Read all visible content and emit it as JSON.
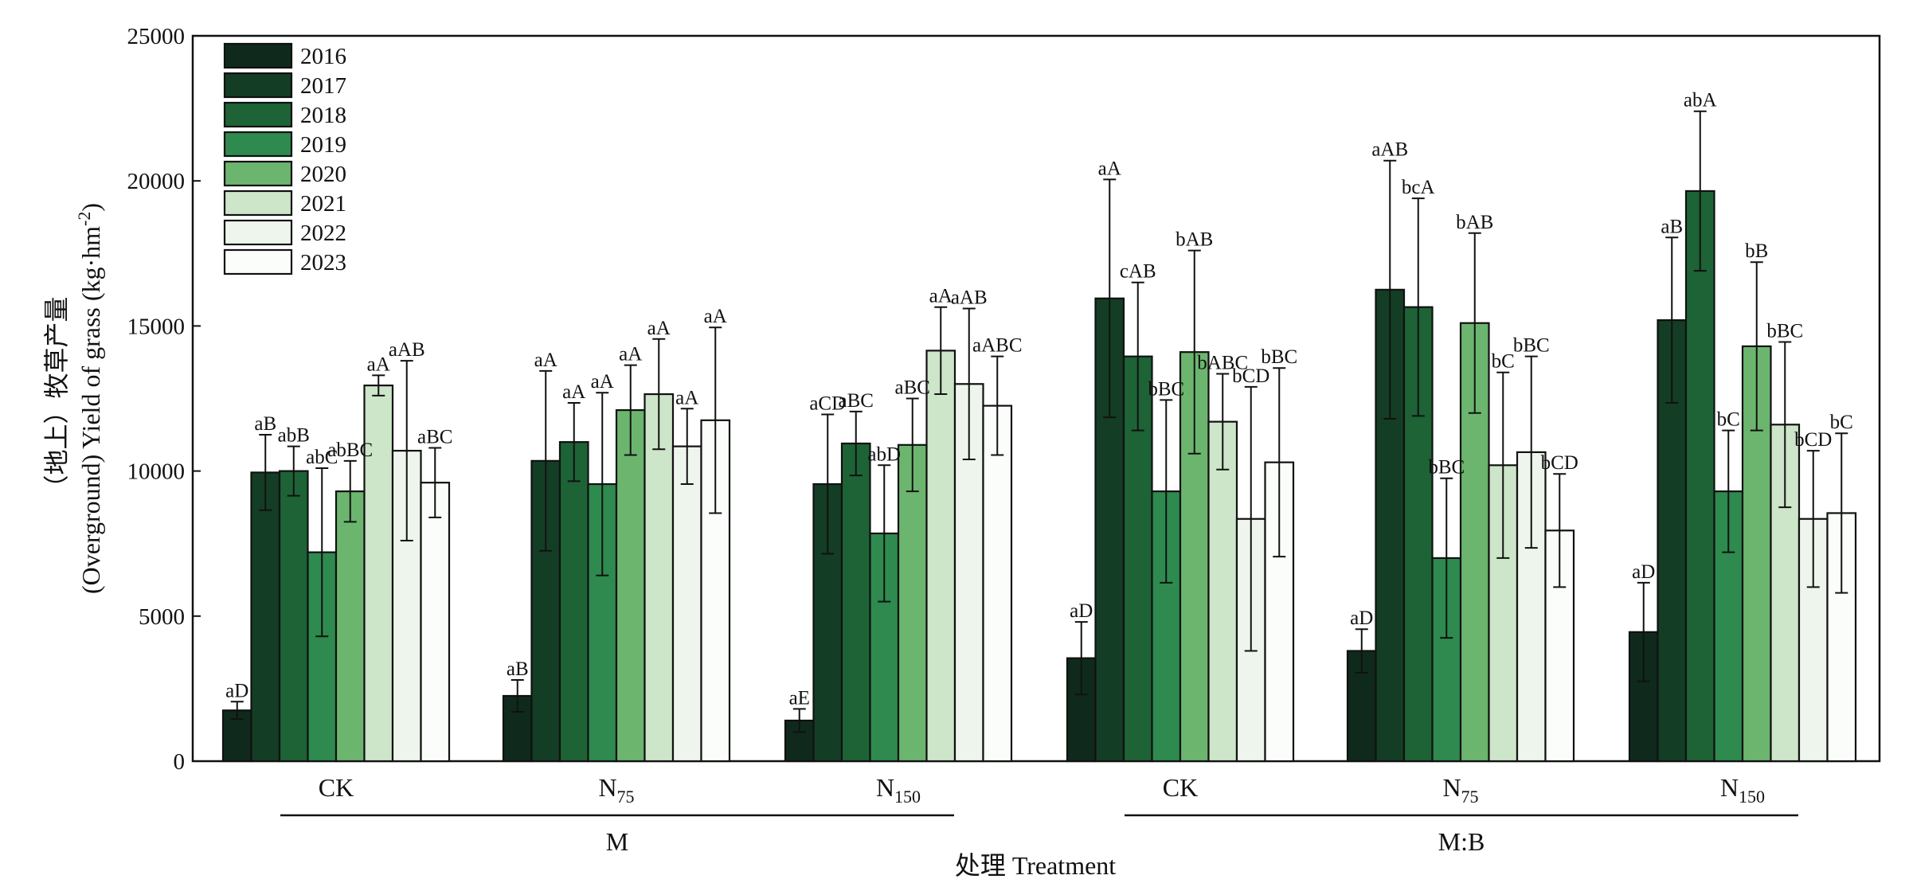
{
  "chart_data": {
    "type": "bar",
    "ylabel_line1": "（地上）牧草产量",
    "ylabel_line2": "(Overground) Yield of grass (kg·hm",
    "ylabel_sup": "-2",
    "ylabel_close": ")",
    "xlabel": "处理 Treatment",
    "ylim": [
      0,
      25000
    ],
    "yticks": [
      "0",
      "5000",
      "10000",
      "15000",
      "20000",
      "25000"
    ],
    "legend_position": "top-left",
    "groups": [
      {
        "name": "M",
        "categories": [
          0,
          1,
          2
        ]
      },
      {
        "name": "M:B",
        "categories": [
          3,
          4,
          5
        ]
      }
    ],
    "categories": [
      {
        "main": "CK",
        "sub": ""
      },
      {
        "main": "N",
        "sub": "75"
      },
      {
        "main": "N",
        "sub": "150"
      },
      {
        "main": "CK",
        "sub": ""
      },
      {
        "main": "N",
        "sub": "75"
      },
      {
        "main": "N",
        "sub": "150"
      }
    ],
    "series": [
      {
        "name": "2016",
        "color": "#0f2a1c",
        "values": [
          1750,
          2250,
          1400,
          3550,
          3800,
          4450
        ],
        "errors": [
          300,
          550,
          400,
          1250,
          750,
          1700
        ],
        "labels": [
          "aD",
          "aB",
          "aE",
          "aD",
          "aD",
          "aD"
        ]
      },
      {
        "name": "2017",
        "color": "#143d25",
        "values": [
          9950,
          10350,
          9550,
          15950,
          16250,
          15200
        ],
        "errors": [
          1300,
          3100,
          2400,
          4100,
          4450,
          2850
        ],
        "labels": [
          "aB",
          "aA",
          "aCD",
          "aA",
          "aAB",
          "aB"
        ]
      },
      {
        "name": "2018",
        "color": "#1d6336",
        "values": [
          10000,
          11000,
          10950,
          13950,
          15650,
          19650
        ],
        "errors": [
          850,
          1350,
          1100,
          2550,
          3750,
          2750
        ],
        "labels": [
          "abB",
          "aA",
          "aBC",
          "cAB",
          "bcA",
          "abA"
        ]
      },
      {
        "name": "2019",
        "color": "#2e8a4e",
        "values": [
          7200,
          9550,
          7850,
          9300,
          7000,
          9300
        ],
        "errors": [
          2900,
          3150,
          2350,
          3150,
          2750,
          2100
        ],
        "labels": [
          "abC",
          "aA",
          "abD",
          "bBC",
          "bBC",
          "bC"
        ]
      },
      {
        "name": "2020",
        "color": "#6cb56f",
        "values": [
          9300,
          12100,
          10900,
          14100,
          15100,
          14300
        ],
        "errors": [
          1050,
          1550,
          1600,
          3500,
          3100,
          2900
        ],
        "labels": [
          "abBC",
          "aA",
          "aBC",
          "bAB",
          "bAB",
          "bB"
        ]
      },
      {
        "name": "2021",
        "color": "#cde5c8",
        "values": [
          12950,
          12650,
          14150,
          11700,
          10200,
          11600
        ],
        "errors": [
          350,
          1900,
          1500,
          1650,
          3200,
          2850
        ],
        "labels": [
          "aA",
          "aA",
          "aA",
          "bABC",
          "bC",
          "bBC"
        ]
      },
      {
        "name": "2022",
        "color": "#edf5ec",
        "values": [
          10700,
          10850,
          13000,
          8350,
          10650,
          8350
        ],
        "errors": [
          3100,
          1300,
          2600,
          4550,
          3300,
          2350
        ],
        "labels": [
          "aAB",
          "aA",
          "aAB",
          "bCD",
          "bBC",
          "bCD"
        ]
      },
      {
        "name": "2023",
        "color": "#fbfdfb",
        "values": [
          9600,
          11750,
          12250,
          10300,
          7950,
          8550
        ],
        "errors": [
          1200,
          3200,
          1700,
          3250,
          1950,
          2750
        ],
        "labels": [
          "aBC",
          "aA",
          "aABC",
          "bBC",
          "bCD",
          "bC"
        ]
      }
    ]
  }
}
